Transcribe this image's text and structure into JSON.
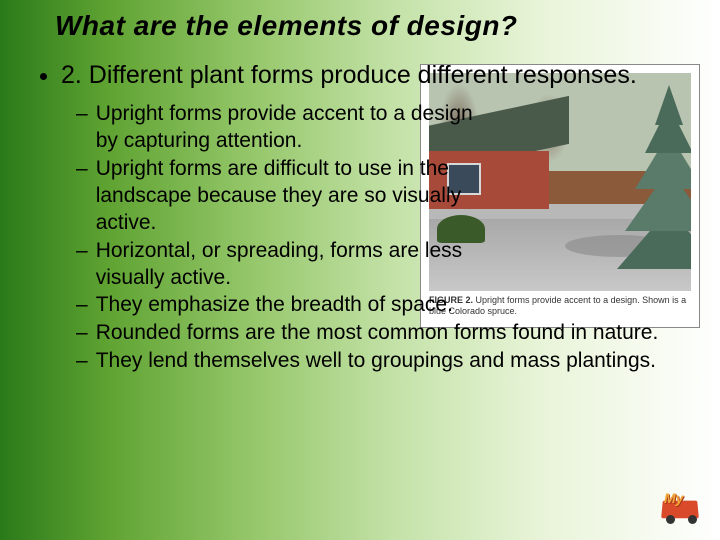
{
  "title": "What are the elements of design?",
  "main_bullet": "2. Different plant forms produce different responses.",
  "sub_bullets": [
    "Upright forms provide accent to a design by capturing attention.",
    "Upright forms are difficult to use in the landscape because they are so visually active.",
    "Horizontal, or spreading, forms are less visually active.",
    "They emphasize the breadth of space.",
    "Rounded forms are the most common forms found in nature.",
    "They lend themselves well to groupings and mass plantings."
  ],
  "figure": {
    "caption_bold": "FIGURE 2.",
    "caption_text": "Upright forms provide accent to a design. Shown is a blue Colorado spruce."
  },
  "logo_text": "My",
  "colors": {
    "text": "#000000",
    "gradient_start": "#2a7a1a",
    "gradient_end": "#ffffff"
  }
}
